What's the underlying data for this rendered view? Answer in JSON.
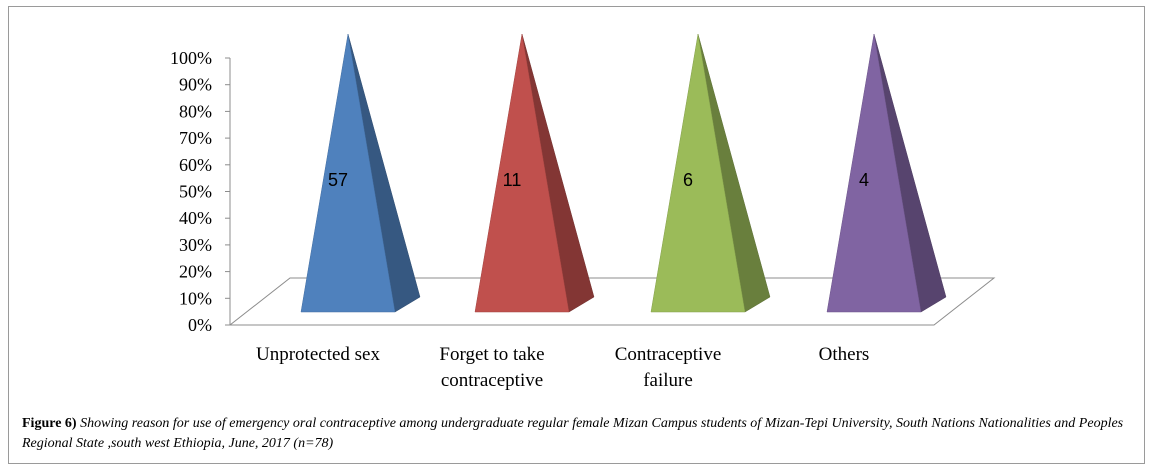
{
  "chart_data": {
    "type": "bar",
    "shape": "3d-pyramid",
    "categories": [
      "Unprotected sex",
      "Forget to take contraceptive",
      "Contraceptive failure",
      "Others"
    ],
    "category_lines": [
      [
        "Unprotected sex"
      ],
      [
        "Forget to take",
        "contraceptive"
      ],
      [
        "Contraceptive",
        "failure"
      ],
      [
        "Others"
      ]
    ],
    "values": [
      57,
      11,
      6,
      4
    ],
    "data_labels": [
      "57",
      "11",
      "6",
      "4"
    ],
    "ylim": [
      0,
      100
    ],
    "yticks": [
      "0%",
      "10%",
      "20%",
      "30%",
      "40%",
      "50%",
      "60%",
      "70%",
      "80%",
      "90%",
      "100%"
    ],
    "colors": {
      "Unprotected sex": "#4f81bd",
      "Forget to take contraceptive": "#c0504d",
      "Contraceptive failure": "#9bbb59",
      "Others": "#8064a2"
    },
    "grid": false,
    "legend": "none"
  },
  "caption": {
    "lead": "Figure 6)",
    "text": "Showing reason for  use of emergency oral contraceptive among undergraduate regular female Mizan Campus students of Mizan-Tepi University, South Nations Nationalities and Peoples Regional State ,south west Ethiopia, June, 2017 (n=78)"
  }
}
